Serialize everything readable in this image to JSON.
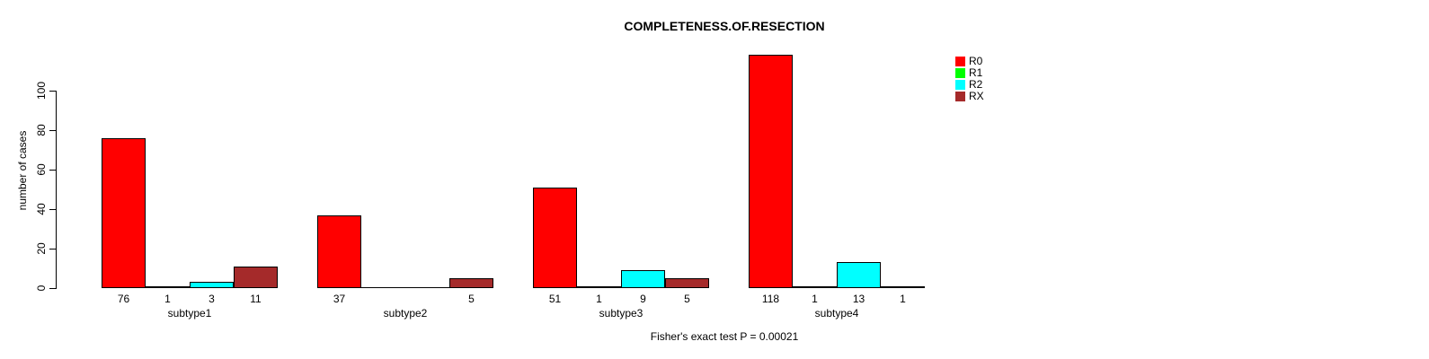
{
  "chart_data": {
    "type": "bar",
    "title": "COMPLETENESS.OF.RESECTION",
    "ylabel": "number of cases",
    "xlabel": "",
    "footer": "Fisher's exact test P = 0.00021",
    "categories": [
      "subtype1",
      "subtype2",
      "subtype3",
      "subtype4"
    ],
    "series": [
      {
        "name": "R0",
        "color": "#FF0000",
        "values": [
          76,
          37,
          51,
          118
        ]
      },
      {
        "name": "R1",
        "color": "#00FF00",
        "values": [
          1,
          0,
          1,
          1
        ]
      },
      {
        "name": "R2",
        "color": "#00FFFF",
        "values": [
          3,
          0,
          9,
          13
        ]
      },
      {
        "name": "RX",
        "color": "#A52A2A",
        "values": [
          11,
          5,
          5,
          1
        ]
      }
    ],
    "yticks": [
      0,
      20,
      40,
      60,
      80,
      100
    ],
    "ylim": [
      0,
      118
    ],
    "grid": false,
    "legend_position": "top-right",
    "bar_value_labels": "values shown under each bar, zeros omitted",
    "background_color": "#FFFFFF",
    "axis_color": "#000000"
  }
}
